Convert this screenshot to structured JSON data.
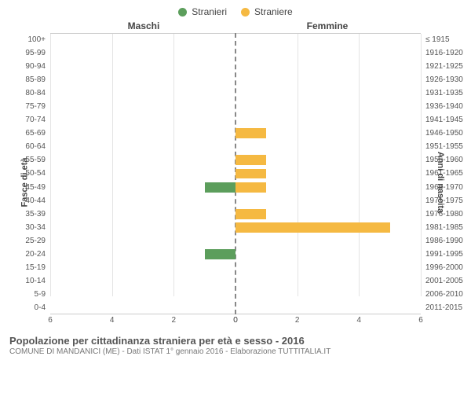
{
  "chart": {
    "type": "horizontal-population-pyramid",
    "legend": [
      {
        "label": "Stranieri",
        "color": "#5c9e5c"
      },
      {
        "label": "Straniere",
        "color": "#f5b942"
      }
    ],
    "top_labels": {
      "left": "Maschi",
      "right": "Femmine"
    },
    "y_left_title": "Fasce di età",
    "y_right_title": "Anni di nascita",
    "x_max": 6,
    "x_ticks_left": [
      6,
      4,
      2,
      0
    ],
    "x_ticks_right": [
      0,
      2,
      4,
      6
    ],
    "grid_color": "#e4e4e4",
    "center_line_color": "#888888",
    "background_color": "#ffffff",
    "male_color": "#5c9e5c",
    "female_color": "#f5b942",
    "rows": [
      {
        "age": "100+",
        "birth": "≤ 1915",
        "m": 0,
        "f": 0
      },
      {
        "age": "95-99",
        "birth": "1916-1920",
        "m": 0,
        "f": 0
      },
      {
        "age": "90-94",
        "birth": "1921-1925",
        "m": 0,
        "f": 0
      },
      {
        "age": "85-89",
        "birth": "1926-1930",
        "m": 0,
        "f": 0
      },
      {
        "age": "80-84",
        "birth": "1931-1935",
        "m": 0,
        "f": 0
      },
      {
        "age": "75-79",
        "birth": "1936-1940",
        "m": 0,
        "f": 0
      },
      {
        "age": "70-74",
        "birth": "1941-1945",
        "m": 0,
        "f": 0
      },
      {
        "age": "65-69",
        "birth": "1946-1950",
        "m": 0,
        "f": 1
      },
      {
        "age": "60-64",
        "birth": "1951-1955",
        "m": 0,
        "f": 0
      },
      {
        "age": "55-59",
        "birth": "1956-1960",
        "m": 0,
        "f": 1
      },
      {
        "age": "50-54",
        "birth": "1961-1965",
        "m": 0,
        "f": 1
      },
      {
        "age": "45-49",
        "birth": "1966-1970",
        "m": 1,
        "f": 1
      },
      {
        "age": "40-44",
        "birth": "1971-1975",
        "m": 0,
        "f": 0
      },
      {
        "age": "35-39",
        "birth": "1976-1980",
        "m": 0,
        "f": 1
      },
      {
        "age": "30-34",
        "birth": "1981-1985",
        "m": 0,
        "f": 5
      },
      {
        "age": "25-29",
        "birth": "1986-1990",
        "m": 0,
        "f": 0
      },
      {
        "age": "20-24",
        "birth": "1991-1995",
        "m": 1,
        "f": 0
      },
      {
        "age": "15-19",
        "birth": "1996-2000",
        "m": 0,
        "f": 0
      },
      {
        "age": "10-14",
        "birth": "2001-2005",
        "m": 0,
        "f": 0
      },
      {
        "age": "5-9",
        "birth": "2006-2010",
        "m": 0,
        "f": 0
      },
      {
        "age": "0-4",
        "birth": "2011-2015",
        "m": 0,
        "f": 0
      }
    ]
  },
  "footer": {
    "title": "Popolazione per cittadinanza straniera per età e sesso - 2016",
    "subtitle": "COMUNE DI MANDANICI (ME) - Dati ISTAT 1° gennaio 2016 - Elaborazione TUTTITALIA.IT"
  }
}
